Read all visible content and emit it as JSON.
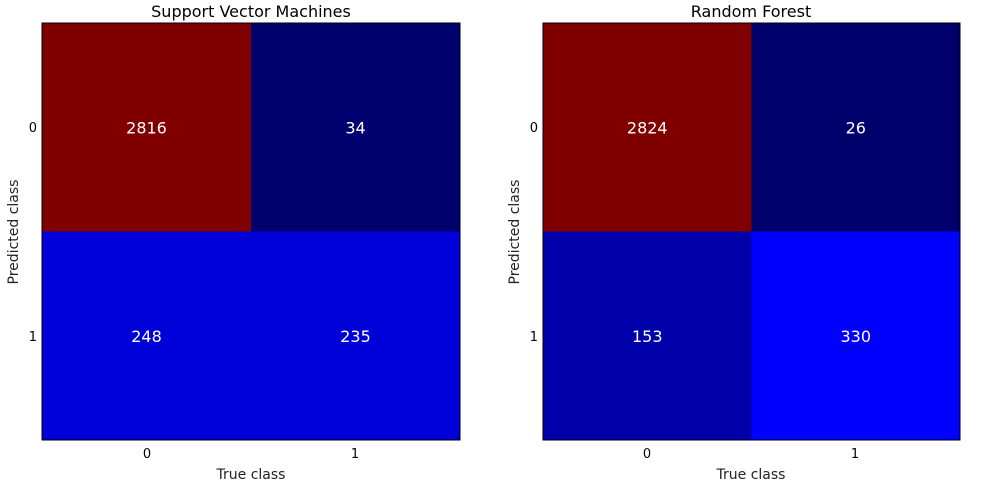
{
  "chart_data": [
    {
      "type": "heatmap",
      "title": "Support Vector Machines",
      "xlabel": "True class",
      "ylabel": "Predicted class",
      "x_categories": [
        "0",
        "1"
      ],
      "y_categories": [
        "0",
        "1"
      ],
      "values": [
        [
          2816,
          34
        ],
        [
          248,
          235
        ]
      ],
      "colormap": "jet",
      "cell_colors": [
        [
          "#800000",
          "#00006e"
        ],
        [
          "#0000d8",
          "#0000d8"
        ]
      ]
    },
    {
      "type": "heatmap",
      "title": "Random Forest",
      "xlabel": "True class",
      "ylabel": "Predicted class",
      "x_categories": [
        "0",
        "1"
      ],
      "y_categories": [
        "0",
        "1"
      ],
      "values": [
        [
          2824,
          26
        ],
        [
          153,
          330
        ]
      ],
      "colormap": "jet",
      "cell_colors": [
        [
          "#800000",
          "#00006c"
        ],
        [
          "#0000aa",
          "#0000ff"
        ]
      ]
    }
  ]
}
